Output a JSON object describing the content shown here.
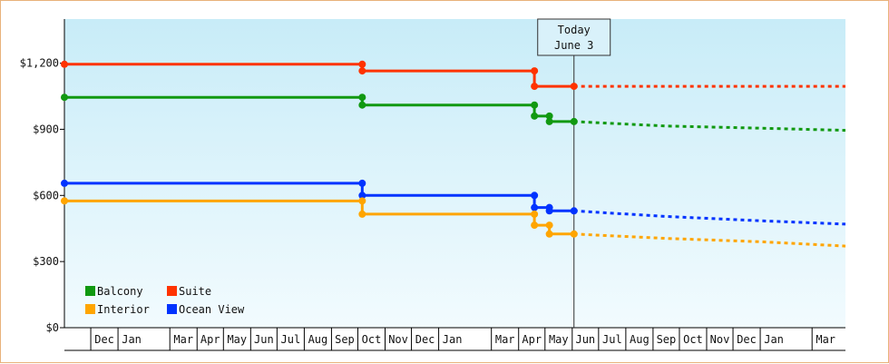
{
  "chart_data": {
    "type": "line",
    "style": "step",
    "today_marker": {
      "line1": "Today",
      "line2": "June 3",
      "date": "2024-06-03"
    },
    "ylim": [
      0,
      1400
    ],
    "y_ticks": [
      0,
      300,
      600,
      900,
      1200
    ],
    "y_tick_labels": [
      "$0",
      "$300",
      "$600",
      "$900",
      "$1,200"
    ],
    "xlim": [
      "2022-11-01",
      "2025-04-08"
    ],
    "grid": false,
    "background_gradient": [
      "#c8ecf8",
      "#f2fbfe"
    ],
    "legend_position": "bottom-left",
    "month_labels": [
      {
        "label": "Dec",
        "date": "2022-12-01"
      },
      {
        "label": "Jan",
        "date": "2023-01-01"
      },
      {
        "label": "Mar",
        "date": "2023-03-01"
      },
      {
        "label": "Apr",
        "date": "2023-04-01"
      },
      {
        "label": "May",
        "date": "2023-05-01"
      },
      {
        "label": "Jun",
        "date": "2023-06-01"
      },
      {
        "label": "Jul",
        "date": "2023-07-01"
      },
      {
        "label": "Aug",
        "date": "2023-08-01"
      },
      {
        "label": "Sep",
        "date": "2023-09-01"
      },
      {
        "label": "Oct",
        "date": "2023-10-01"
      },
      {
        "label": "Nov",
        "date": "2023-11-01"
      },
      {
        "label": "Dec",
        "date": "2023-12-01"
      },
      {
        "label": "Jan",
        "date": "2024-01-01"
      },
      {
        "label": "Mar",
        "date": "2024-03-01"
      },
      {
        "label": "Apr",
        "date": "2024-04-01"
      },
      {
        "label": "May",
        "date": "2024-05-01"
      },
      {
        "label": "Jun",
        "date": "2024-06-01"
      },
      {
        "label": "Jul",
        "date": "2024-07-01"
      },
      {
        "label": "Aug",
        "date": "2024-08-01"
      },
      {
        "label": "Sep",
        "date": "2024-09-01"
      },
      {
        "label": "Oct",
        "date": "2024-10-01"
      },
      {
        "label": "Nov",
        "date": "2024-11-01"
      },
      {
        "label": "Dec",
        "date": "2024-12-01"
      },
      {
        "label": "Jan",
        "date": "2025-01-01"
      },
      {
        "label": "Mar",
        "date": "2025-03-01"
      }
    ],
    "series": [
      {
        "name": "Suite",
        "color": "#ff3300",
        "points": [
          [
            "2022-11-01",
            1195
          ],
          [
            "2023-10-06",
            1195
          ],
          [
            "2023-10-06",
            1165
          ],
          [
            "2024-04-19",
            1165
          ],
          [
            "2024-04-19",
            1095
          ],
          [
            "2024-06-03",
            1095
          ]
        ],
        "forecast": [
          [
            "2024-06-03",
            1095
          ],
          [
            "2025-04-08",
            1095
          ]
        ]
      },
      {
        "name": "Balcony",
        "color": "#119911",
        "points": [
          [
            "2022-11-01",
            1045
          ],
          [
            "2023-10-06",
            1045
          ],
          [
            "2023-10-06",
            1010
          ],
          [
            "2024-04-19",
            1010
          ],
          [
            "2024-04-19",
            960
          ],
          [
            "2024-05-06",
            960
          ],
          [
            "2024-05-06",
            935
          ],
          [
            "2024-06-03",
            935
          ]
        ],
        "forecast": [
          [
            "2024-06-03",
            935
          ],
          [
            "2024-09-15",
            915
          ],
          [
            "2025-01-01",
            905
          ],
          [
            "2025-04-08",
            895
          ]
        ]
      },
      {
        "name": "Ocean View",
        "color": "#0033ff",
        "points": [
          [
            "2022-11-01",
            655
          ],
          [
            "2023-10-06",
            655
          ],
          [
            "2023-10-06",
            600
          ],
          [
            "2024-04-19",
            600
          ],
          [
            "2024-04-19",
            545
          ],
          [
            "2024-05-06",
            545
          ],
          [
            "2024-05-06",
            530
          ],
          [
            "2024-06-03",
            530
          ]
        ],
        "forecast": [
          [
            "2024-06-03",
            530
          ],
          [
            "2024-09-15",
            505
          ],
          [
            "2025-01-01",
            485
          ],
          [
            "2025-04-08",
            470
          ]
        ]
      },
      {
        "name": "Interior",
        "color": "#ffa500",
        "points": [
          [
            "2022-11-01",
            575
          ],
          [
            "2023-10-06",
            575
          ],
          [
            "2023-10-06",
            515
          ],
          [
            "2024-04-19",
            515
          ],
          [
            "2024-04-19",
            465
          ],
          [
            "2024-05-06",
            465
          ],
          [
            "2024-05-06",
            425
          ],
          [
            "2024-06-03",
            425
          ]
        ],
        "forecast": [
          [
            "2024-06-03",
            425
          ],
          [
            "2024-09-15",
            405
          ],
          [
            "2025-01-01",
            390
          ],
          [
            "2025-04-08",
            370
          ]
        ]
      }
    ],
    "legend": [
      {
        "name": "Balcony",
        "color": "#119911"
      },
      {
        "name": "Suite",
        "color": "#ff3300"
      },
      {
        "name": "Interior",
        "color": "#ffa500"
      },
      {
        "name": "Ocean View",
        "color": "#0033ff"
      }
    ]
  }
}
